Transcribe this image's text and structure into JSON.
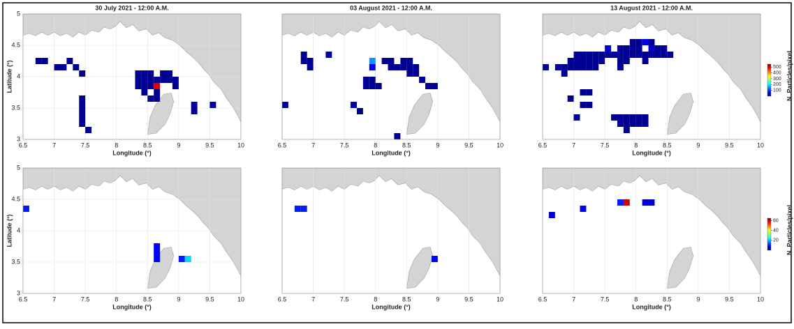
{
  "chart_data": [
    {
      "type": "heatmap",
      "title": "30 July 2021 - 12:00 A.M.",
      "xlabel": "Longitude (°)",
      "ylabel": "Latitude (°)",
      "xlim": [
        6.5,
        10
      ],
      "ylim": [
        3,
        5
      ],
      "xticks": [
        6.5,
        7,
        7.5,
        8,
        8.5,
        9,
        9.5,
        10
      ],
      "yticks": [
        3,
        3.5,
        4,
        4.5,
        5
      ],
      "colormap": "jet",
      "clim": [
        0,
        550
      ],
      "x": [
        6.75,
        6.85,
        7.05,
        7.15,
        7.25,
        7.35,
        7.45,
        8.35,
        8.45,
        8.55,
        8.75,
        8.85,
        8.35,
        8.45,
        8.55,
        8.65,
        8.75,
        8.85,
        8.95,
        8.35,
        8.45,
        8.55,
        8.65,
        8.95,
        8.45,
        8.65,
        8.55,
        8.65,
        7.45,
        7.45,
        7.45,
        7.45,
        7.45,
        7.55,
        9.25,
        9.25,
        9.55
      ],
      "y": [
        4.25,
        4.25,
        4.15,
        4.15,
        4.25,
        4.15,
        4.05,
        4.05,
        4.05,
        4.05,
        4.05,
        4.05,
        3.95,
        3.95,
        3.95,
        3.95,
        3.95,
        3.95,
        3.95,
        3.85,
        3.85,
        3.85,
        3.85,
        3.85,
        3.75,
        3.75,
        3.65,
        3.65,
        3.65,
        3.55,
        3.45,
        3.35,
        3.25,
        3.15,
        3.55,
        3.45,
        3.55
      ],
      "values": [
        10,
        10,
        10,
        10,
        10,
        10,
        10,
        10,
        10,
        10,
        10,
        10,
        10,
        10,
        10,
        10,
        10,
        10,
        10,
        10,
        10,
        10,
        500,
        10,
        10,
        10,
        10,
        10,
        10,
        10,
        10,
        10,
        10,
        10,
        10,
        10,
        10
      ]
    },
    {
      "type": "heatmap",
      "title": "03 August 2021 - 12:00 A.M.",
      "xlabel": "Longitude (°)",
      "xlim": [
        6.5,
        10
      ],
      "ylim": [
        3,
        5
      ],
      "xticks": [
        6.5,
        7,
        7.5,
        8,
        8.5,
        9,
        9.5,
        10
      ],
      "colormap": "jet",
      "clim": [
        0,
        550
      ],
      "x": [
        6.85,
        6.85,
        6.95,
        6.95,
        7.25,
        7.95,
        8.15,
        8.25,
        8.45,
        8.55,
        7.95,
        8.25,
        8.35,
        8.45,
        8.55,
        8.65,
        8.55,
        8.65,
        7.85,
        7.95,
        8.75,
        7.85,
        7.95,
        8.05,
        8.85,
        8.95,
        6.55,
        7.65,
        7.75,
        8.35
      ],
      "y": [
        4.35,
        4.25,
        4.25,
        4.15,
        4.35,
        4.25,
        4.25,
        4.25,
        4.25,
        4.25,
        4.15,
        4.15,
        4.15,
        4.15,
        4.15,
        4.15,
        4.05,
        4.05,
        3.95,
        3.95,
        3.95,
        3.85,
        3.85,
        3.85,
        3.85,
        3.85,
        3.55,
        3.55,
        3.45,
        3.05
      ],
      "values": [
        10,
        10,
        10,
        10,
        10,
        150,
        10,
        10,
        10,
        10,
        60,
        10,
        10,
        10,
        10,
        10,
        10,
        10,
        10,
        10,
        10,
        10,
        10,
        10,
        10,
        10,
        10,
        10,
        10,
        10
      ]
    },
    {
      "type": "heatmap",
      "title": "13 August 2021 - 12:00 A.M.",
      "xlabel": "Longitude (°)",
      "xlim": [
        6.5,
        10
      ],
      "ylim": [
        3,
        5
      ],
      "xticks": [
        6.5,
        7,
        7.5,
        8,
        8.5,
        9,
        9.5,
        10
      ],
      "colormap": "jet",
      "clim": [
        0,
        550
      ],
      "colorbar": {
        "label": "N. Particles/pixel",
        "ticks": [
          100,
          200,
          300,
          400,
          500
        ]
      },
      "x": [
        7.95,
        8.05,
        8.15,
        8.25,
        7.55,
        7.75,
        7.85,
        7.95,
        8.05,
        8.25,
        8.35,
        8.45,
        7.05,
        7.15,
        7.25,
        7.35,
        7.45,
        7.55,
        7.65,
        7.75,
        7.85,
        7.95,
        8.05,
        8.15,
        8.25,
        8.35,
        8.45,
        8.55,
        6.95,
        7.05,
        7.15,
        7.25,
        7.35,
        7.45,
        7.75,
        7.85,
        8.15,
        6.55,
        6.75,
        6.85,
        6.95,
        7.05,
        7.15,
        7.25,
        7.35,
        7.75,
        6.85,
        7.15,
        7.25,
        6.95,
        7.15,
        7.25,
        7.05,
        7.65,
        7.75,
        7.85,
        7.95,
        8.05,
        8.15,
        7.75,
        7.85,
        7.95,
        8.05,
        8.15,
        7.85
      ],
      "y": [
        4.55,
        4.55,
        4.55,
        4.55,
        4.45,
        4.45,
        4.45,
        4.45,
        4.45,
        4.45,
        4.45,
        4.45,
        4.35,
        4.35,
        4.35,
        4.35,
        4.35,
        4.35,
        4.35,
        4.35,
        4.35,
        4.35,
        4.35,
        4.35,
        4.35,
        4.35,
        4.35,
        4.35,
        4.25,
        4.25,
        4.25,
        4.25,
        4.25,
        4.25,
        4.25,
        4.25,
        4.25,
        4.15,
        4.15,
        4.15,
        4.15,
        4.15,
        4.15,
        4.15,
        4.15,
        4.15,
        4.05,
        3.75,
        3.75,
        3.65,
        3.55,
        3.55,
        3.35,
        3.35,
        3.35,
        3.35,
        3.35,
        3.35,
        3.35,
        3.25,
        3.25,
        3.25,
        3.25,
        3.25,
        3.15
      ],
      "values": [
        10,
        10,
        60,
        10,
        50,
        10,
        10,
        10,
        10,
        40,
        10,
        10,
        10,
        10,
        10,
        10,
        10,
        10,
        10,
        10,
        10,
        10,
        10,
        10,
        10,
        10,
        10,
        10,
        10,
        10,
        10,
        10,
        10,
        10,
        10,
        10,
        10,
        10,
        10,
        10,
        10,
        10,
        10,
        10,
        10,
        10,
        10,
        10,
        10,
        10,
        10,
        10,
        10,
        10,
        10,
        10,
        10,
        10,
        10,
        10,
        10,
        10,
        10,
        10,
        10
      ]
    },
    {
      "type": "heatmap",
      "xlabel": "Longitude (°)",
      "ylabel": "Latitude (°)",
      "xlim": [
        6.5,
        10
      ],
      "ylim": [
        3,
        5
      ],
      "xticks": [
        6.5,
        7,
        7.5,
        8,
        8.5,
        9,
        9.5,
        10
      ],
      "yticks": [
        3,
        3.5,
        4,
        4.5,
        5
      ],
      "colormap": "jet",
      "clim": [
        0,
        65
      ],
      "x": [
        6.55,
        8.65,
        8.65,
        8.65,
        9.05,
        9.15
      ],
      "y": [
        4.35,
        3.75,
        3.65,
        3.55,
        3.55,
        3.55
      ],
      "values": [
        10,
        8,
        8,
        8,
        10,
        22
      ]
    },
    {
      "type": "heatmap",
      "xlabel": "Longitude (°)",
      "xlim": [
        6.5,
        10
      ],
      "ylim": [
        3,
        5
      ],
      "xticks": [
        6.5,
        7,
        7.5,
        8,
        8.5,
        9,
        9.5,
        10
      ],
      "colormap": "jet",
      "clim": [
        0,
        65
      ],
      "x": [
        6.75,
        6.85,
        8.95
      ],
      "y": [
        4.35,
        4.35,
        3.55
      ],
      "values": [
        10,
        10,
        8
      ]
    },
    {
      "type": "heatmap",
      "xlabel": "Longitude (°)",
      "xlim": [
        6.5,
        10
      ],
      "ylim": [
        3,
        5
      ],
      "xticks": [
        6.5,
        7,
        7.5,
        8,
        8.5,
        9,
        9.5,
        10
      ],
      "colormap": "jet",
      "clim": [
        0,
        65
      ],
      "colorbar": {
        "label": "N. Particles/pixel",
        "ticks": [
          20,
          40,
          60
        ]
      },
      "x": [
        6.65,
        7.15,
        7.75,
        7.85,
        8.15,
        8.25
      ],
      "y": [
        4.25,
        4.35,
        4.45,
        4.45,
        4.45,
        4.45
      ],
      "values": [
        5,
        8,
        10,
        60,
        5,
        5
      ]
    }
  ]
}
